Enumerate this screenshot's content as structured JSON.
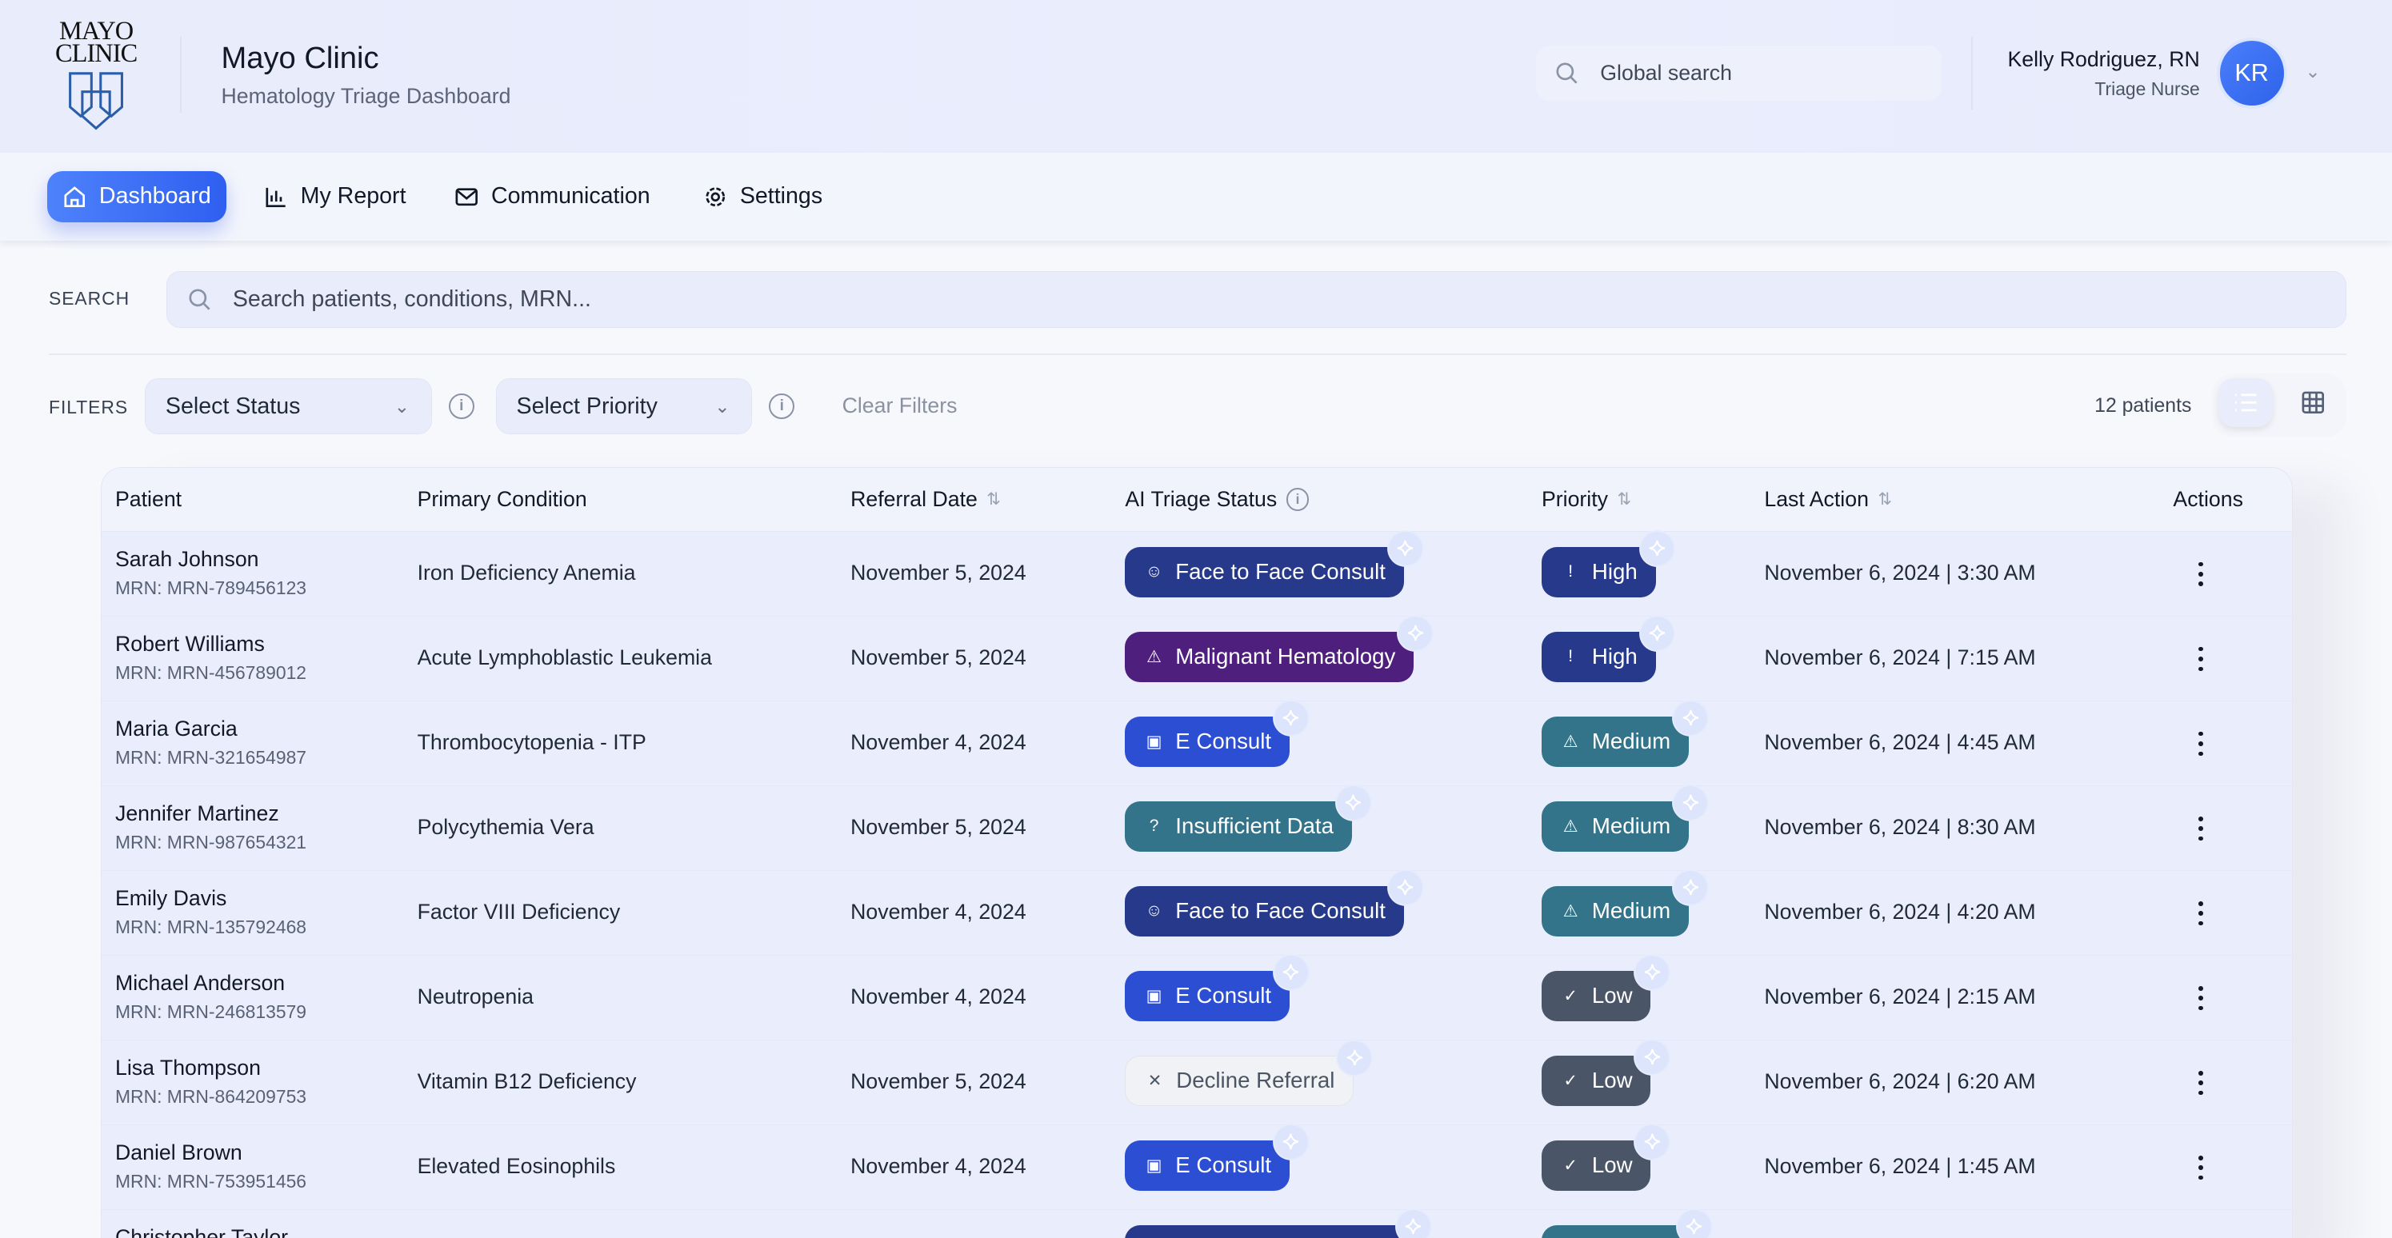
{
  "header": {
    "logo_text": [
      "MAYO",
      "CLINIC"
    ],
    "title": "Mayo Clinic",
    "subtitle": "Hematology Triage Dashboard",
    "global_search_placeholder": "Global search",
    "user": {
      "name": "Kelly Rodriguez, RN",
      "role": "Triage Nurse",
      "initials": "KR"
    }
  },
  "nav": [
    {
      "label": "Dashboard",
      "icon": "home-icon",
      "active": true
    },
    {
      "label": "My Report",
      "icon": "bar-chart-icon"
    },
    {
      "label": "Communication",
      "icon": "mail-icon"
    },
    {
      "label": "Settings",
      "icon": "gear-icon"
    }
  ],
  "search": {
    "label": "SEARCH",
    "placeholder": "Search patients, conditions, MRN..."
  },
  "filters": {
    "label": "FILTERS",
    "status_select": "Select Status",
    "priority_select": "Select Priority",
    "clear": "Clear Filters",
    "count": "12 patients",
    "view": "list"
  },
  "table": {
    "columns": [
      "Patient",
      "Primary Condition",
      "Referral Date",
      "AI Triage Status",
      "Priority",
      "Last Action",
      "Actions"
    ],
    "rows": [
      {
        "name": "Sarah Johnson",
        "mrn": "MRN: MRN-789456123",
        "condition": "Iron Deficiency Anemia",
        "date": "November 5, 2024",
        "status": "Face to Face Consult",
        "status_type": "f2f",
        "priority": "High",
        "last_action": "November 6, 2024 | 3:30 AM"
      },
      {
        "name": "Robert Williams",
        "mrn": "MRN: MRN-456789012",
        "condition": "Acute Lymphoblastic Leukemia",
        "date": "November 5, 2024",
        "status": "Malignant Hematology",
        "status_type": "malignant",
        "priority": "High",
        "last_action": "November 6, 2024 | 7:15 AM"
      },
      {
        "name": "Maria Garcia",
        "mrn": "MRN: MRN-321654987",
        "condition": "Thrombocytopenia - ITP",
        "date": "November 4, 2024",
        "status": "E Consult",
        "status_type": "econsult",
        "priority": "Medium",
        "last_action": "November 6, 2024 | 4:45 AM"
      },
      {
        "name": "Jennifer Martinez",
        "mrn": "MRN: MRN-987654321",
        "condition": "Polycythemia Vera",
        "date": "November 5, 2024",
        "status": "Insufficient Data",
        "status_type": "insufficient",
        "priority": "Medium",
        "last_action": "November 6, 2024 | 8:30 AM"
      },
      {
        "name": "Emily Davis",
        "mrn": "MRN: MRN-135792468",
        "condition": "Factor VIII Deficiency",
        "date": "November 4, 2024",
        "status": "Face to Face Consult",
        "status_type": "f2f",
        "priority": "Medium",
        "last_action": "November 6, 2024 | 4:20 AM"
      },
      {
        "name": "Michael Anderson",
        "mrn": "MRN: MRN-246813579",
        "condition": "Neutropenia",
        "date": "November 4, 2024",
        "status": "E Consult",
        "status_type": "econsult",
        "priority": "Low",
        "last_action": "November 6, 2024 | 2:15 AM"
      },
      {
        "name": "Lisa Thompson",
        "mrn": "MRN: MRN-864209753",
        "condition": "Vitamin B12 Deficiency",
        "date": "November 5, 2024",
        "status": "Decline Referral",
        "status_type": "decline",
        "priority": "Low",
        "last_action": "November 6, 2024 | 6:20 AM"
      },
      {
        "name": "Daniel Brown",
        "mrn": "MRN: MRN-753951456",
        "condition": "Elevated Eosinophils",
        "date": "November 4, 2024",
        "status": "E Consult",
        "status_type": "econsult",
        "priority": "Low",
        "last_action": "November 6, 2024 | 1:45 AM"
      },
      {
        "name": "Christopher Taylor",
        "status_type": "f2f",
        "priority_type": "Medium"
      }
    ]
  },
  "colors": {
    "accent": "#3b6ef5",
    "f2f": "#26398a",
    "malignant": "#4f1f7e",
    "econsult": "#2c4ed3",
    "insufficient": "#33748a",
    "decline": "#f1f2f5",
    "High": "#26398a",
    "Medium": "#33748a",
    "Low": "#4a5568"
  }
}
